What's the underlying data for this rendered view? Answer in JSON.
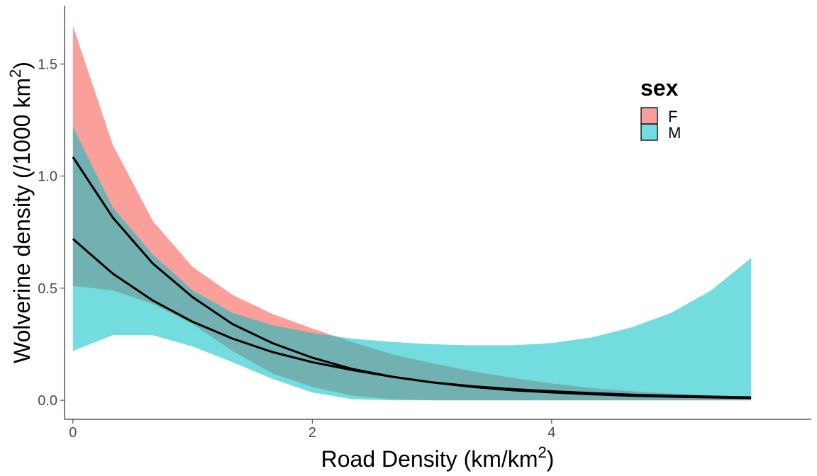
{
  "chart_data": {
    "type": "area",
    "title": "",
    "xlabel": "Road Density (km/km",
    "xlabel_sup": "2",
    "xlabel_suffix": ")",
    "ylabel": "Wolverine density (/1000 km",
    "ylabel_sup": "2",
    "ylabel_suffix": ")",
    "xlim": [
      -0.07,
      6.17
    ],
    "ylim": [
      -0.085,
      1.76
    ],
    "x_ticks": [
      0,
      2,
      4
    ],
    "x_tick_labels": [
      "0",
      "2",
      "4"
    ],
    "y_ticks": [
      0.0,
      0.5,
      1.0,
      1.5
    ],
    "y_tick_labels": [
      "0.0",
      "0.5",
      "1.0",
      "1.5"
    ],
    "grid": false,
    "legend": {
      "title": "sex",
      "position": "top-right",
      "entries": [
        "F",
        "M"
      ]
    },
    "x": [
      0,
      0.333,
      0.667,
      1.0,
      1.333,
      1.667,
      2.0,
      2.333,
      2.667,
      3.0,
      3.333,
      3.667,
      4.0,
      4.333,
      4.667,
      5.0,
      5.333,
      5.667
    ],
    "series": [
      {
        "name": "F",
        "color": "#F8766D",
        "fill_opacity": 0.7,
        "mean": [
          1.085,
          0.815,
          0.61,
          0.46,
          0.34,
          0.255,
          0.19,
          0.14,
          0.105,
          0.08,
          0.06,
          0.045,
          0.035,
          0.027,
          0.02,
          0.016,
          0.013,
          0.01
        ],
        "lower": [
          0.51,
          0.49,
          0.43,
          0.34,
          0.22,
          0.12,
          0.06,
          0.02,
          0.005,
          0.0,
          0.0,
          0.0,
          0.0,
          0.0,
          0.0,
          0.0,
          0.0,
          0.0
        ],
        "upper": [
          1.67,
          1.14,
          0.8,
          0.595,
          0.47,
          0.385,
          0.32,
          0.26,
          0.205,
          0.165,
          0.13,
          0.1,
          0.075,
          0.055,
          0.04,
          0.03,
          0.022,
          0.016
        ]
      },
      {
        "name": "M",
        "color": "#00BFC4",
        "fill_opacity": 0.55,
        "mean": [
          0.72,
          0.565,
          0.445,
          0.35,
          0.275,
          0.215,
          0.17,
          0.135,
          0.105,
          0.08,
          0.063,
          0.05,
          0.04,
          0.032,
          0.025,
          0.02,
          0.016,
          0.013
        ],
        "lower": [
          0.22,
          0.29,
          0.29,
          0.24,
          0.17,
          0.095,
          0.035,
          0.005,
          0.0,
          0.0,
          0.0,
          0.0,
          0.0,
          0.0,
          0.0,
          0.0,
          0.0,
          0.0
        ],
        "upper": [
          1.22,
          0.86,
          0.65,
          0.49,
          0.39,
          0.335,
          0.3,
          0.275,
          0.26,
          0.25,
          0.245,
          0.245,
          0.255,
          0.28,
          0.325,
          0.39,
          0.49,
          0.635
        ]
      }
    ]
  }
}
